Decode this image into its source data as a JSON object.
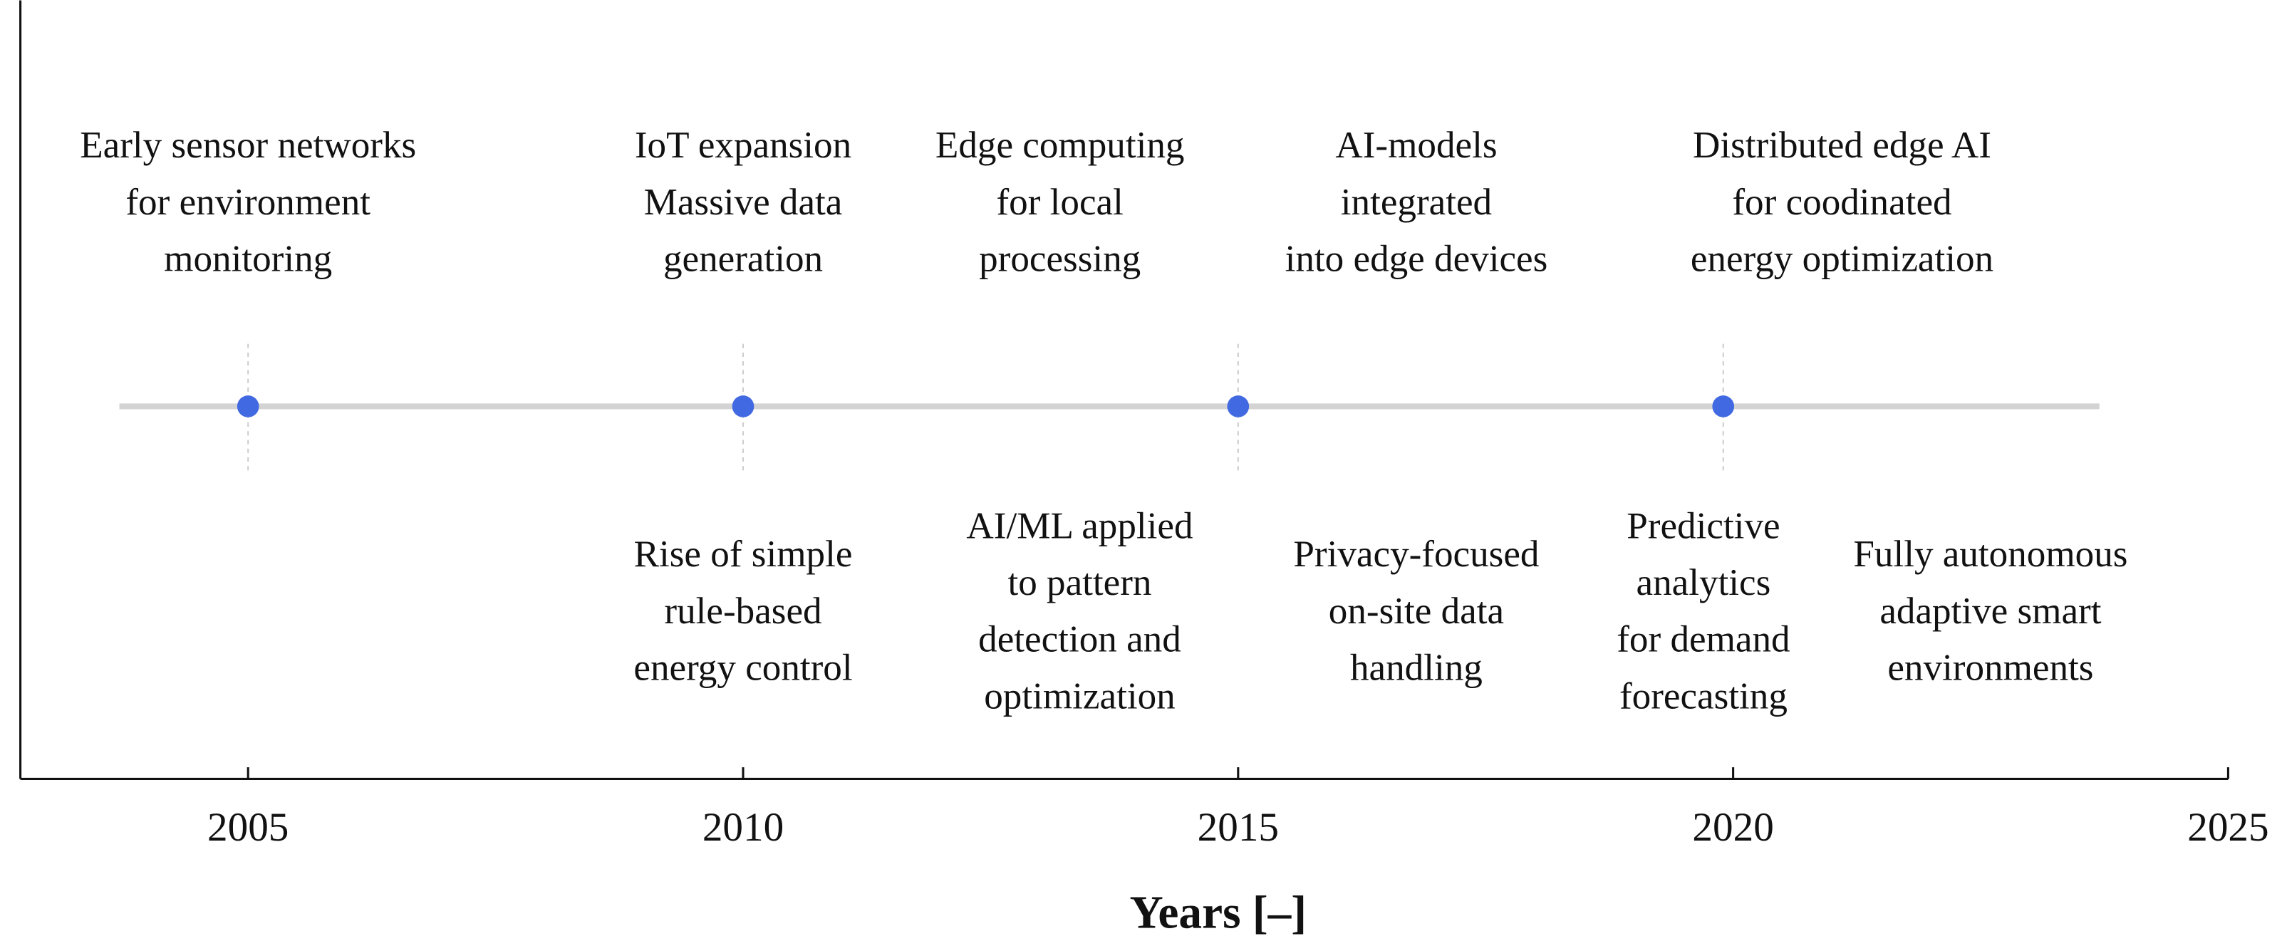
{
  "chart_data": {
    "type": "timeline",
    "xlabel": "Years [–]",
    "xlim": [
      2002.7,
      2025
    ],
    "xticks": [
      2005,
      2010,
      2015,
      2020,
      2025
    ],
    "line_range": [
      2003.7,
      2023.7
    ],
    "line_color": "#d3d3d3",
    "marker_color": "#4169e1",
    "markers": [
      2005,
      2010,
      2015,
      2019.9
    ],
    "events": [
      {
        "side": "top",
        "year": 2005,
        "lines": [
          "Early sensor networks",
          "for environment",
          "monitoring"
        ]
      },
      {
        "side": "top",
        "year": 2010,
        "lines": [
          "IoT expansion",
          "Massive data",
          "generation"
        ]
      },
      {
        "side": "top",
        "year": 2013.2,
        "lines": [
          "Edge computing",
          "for local",
          "processing"
        ]
      },
      {
        "side": "top",
        "year": 2016.8,
        "lines": [
          "AI-models",
          "integrated",
          "into edge devices"
        ]
      },
      {
        "side": "top",
        "year": 2021.1,
        "lines": [
          "Distributed edge AI",
          "for coodinated",
          "energy optimization"
        ]
      },
      {
        "side": "bottom",
        "year": 2010,
        "lines": [
          "Rise of simple",
          "rule-based",
          "energy control"
        ]
      },
      {
        "side": "bottom",
        "year": 2013.4,
        "lines": [
          "AI/ML applied",
          "to pattern",
          "detection and",
          "optimization"
        ]
      },
      {
        "side": "bottom",
        "year": 2016.8,
        "lines": [
          "Privacy-focused",
          "on-site data",
          "handling"
        ]
      },
      {
        "side": "bottom",
        "year": 2019.7,
        "lines": [
          "Predictive",
          "analytics",
          "for demand",
          "forecasting"
        ]
      },
      {
        "side": "bottom",
        "year": 2022.6,
        "lines": [
          "Fully autonomous",
          "adaptive smart",
          "environments"
        ]
      }
    ]
  }
}
